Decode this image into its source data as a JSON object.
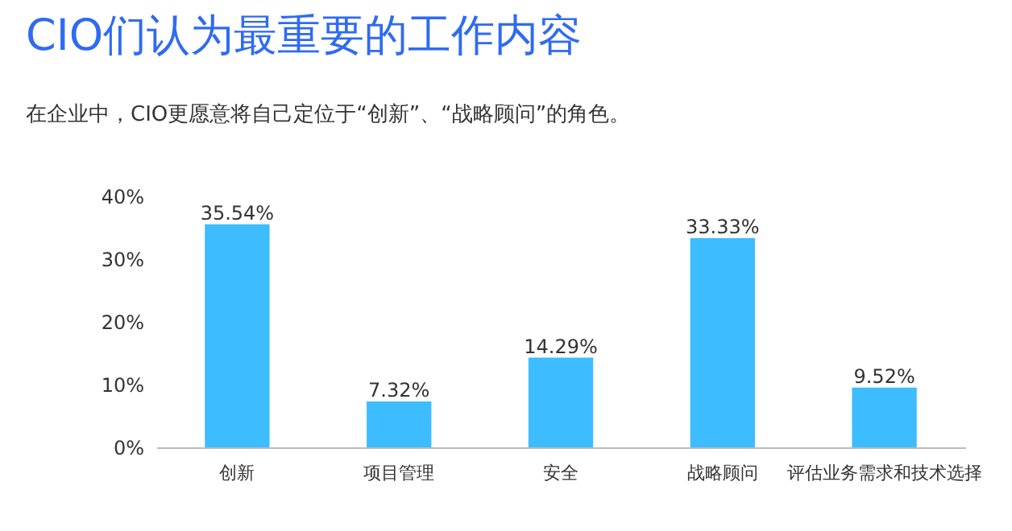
{
  "chart_data": {
    "type": "bar",
    "title": "CIO们认为最重要的工作内容",
    "subtitle": "在企业中，CIO更愿意将自己定位于“创新”、“战略顾问”的角色。",
    "categories": [
      "创新",
      "项目管理",
      "安全",
      "战略顾问",
      "评估业务需求和技术选择"
    ],
    "values": [
      35.54,
      7.32,
      14.29,
      33.33,
      9.52
    ],
    "value_labels": [
      "35.54%",
      "7.32%",
      "14.29%",
      "33.33%",
      "9.52%"
    ],
    "color": "#3dbcff",
    "ylim": [
      0,
      40
    ],
    "yticks": [
      {
        "value": 0,
        "label": "0%"
      },
      {
        "value": 10,
        "label": "10%"
      },
      {
        "value": 20,
        "label": "20%"
      },
      {
        "value": 30,
        "label": "30%"
      },
      {
        "value": 40,
        "label": "40%"
      }
    ],
    "grid": false
  }
}
